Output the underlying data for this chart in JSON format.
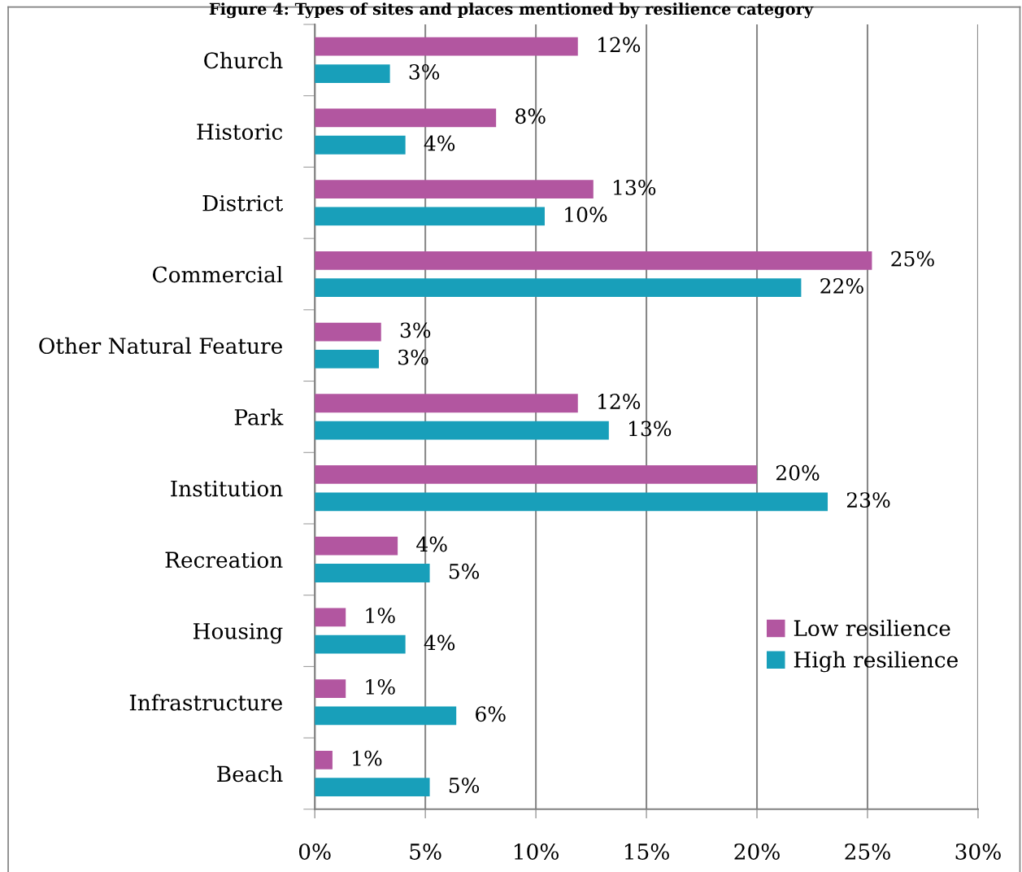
{
  "chart_data": {
    "type": "bar",
    "orientation": "horizontal",
    "title": "Figure 4: Types of sites and places mentioned by resilience category",
    "categories": [
      "Church",
      "Historic",
      "District",
      "Commercial",
      "Other Natural Feature",
      "Park",
      "Institution",
      "Recreation",
      "Housing",
      "Infrastructure",
      "Beach"
    ],
    "series": [
      {
        "name": "Low resilience",
        "color": "#b256a0",
        "values": [
          11.9,
          8.2,
          12.6,
          25.2,
          3.0,
          11.9,
          20.0,
          3.75,
          1.4,
          1.4,
          0.8
        ],
        "value_labels": [
          "12%",
          "8%",
          "13%",
          "25%",
          "3%",
          "12%",
          "20%",
          "4%",
          "1%",
          "1%",
          "1%"
        ]
      },
      {
        "name": "High resilience",
        "color": "#189fba",
        "values": [
          3.4,
          4.1,
          10.4,
          22.0,
          2.9,
          13.3,
          23.2,
          5.2,
          4.1,
          6.4,
          5.2
        ],
        "value_labels": [
          "3%",
          "4%",
          "10%",
          "22%",
          "3%",
          "13%",
          "23%",
          "5%",
          "4%",
          "6%",
          "5%"
        ]
      }
    ],
    "xlim": [
      0,
      30
    ],
    "xticks": [
      {
        "value": 0,
        "label": "0%"
      },
      {
        "value": 5,
        "label": "5%"
      },
      {
        "value": 10,
        "label": "10%"
      },
      {
        "value": 15,
        "label": "15%"
      },
      {
        "value": 20,
        "label": "20%"
      },
      {
        "value": 25,
        "label": "25%"
      },
      {
        "value": 30,
        "label": "30%"
      }
    ],
    "grid": "x",
    "legend": "bottom right"
  }
}
